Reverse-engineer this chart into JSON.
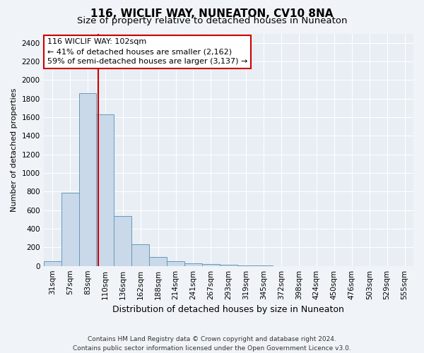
{
  "title": "116, WICLIF WAY, NUNEATON, CV10 8NA",
  "subtitle": "Size of property relative to detached houses in Nuneaton",
  "xlabel": "Distribution of detached houses by size in Nuneaton",
  "ylabel": "Number of detached properties",
  "categories": [
    "31sqm",
    "57sqm",
    "83sqm",
    "110sqm",
    "136sqm",
    "162sqm",
    "188sqm",
    "214sqm",
    "241sqm",
    "267sqm",
    "293sqm",
    "319sqm",
    "345sqm",
    "372sqm",
    "398sqm",
    "424sqm",
    "450sqm",
    "476sqm",
    "503sqm",
    "529sqm",
    "555sqm"
  ],
  "values": [
    50,
    790,
    1860,
    1630,
    535,
    230,
    100,
    50,
    30,
    20,
    10,
    5,
    2,
    1,
    1,
    0,
    0,
    0,
    0,
    0,
    0
  ],
  "bar_color": "#c9d9e9",
  "bar_edge_color": "#6699bb",
  "ylim": [
    0,
    2500
  ],
  "yticks": [
    0,
    200,
    400,
    600,
    800,
    1000,
    1200,
    1400,
    1600,
    1800,
    2000,
    2200,
    2400
  ],
  "annotation_box_text": "116 WICLIF WAY: 102sqm\n← 41% of detached houses are smaller (2,162)\n59% of semi-detached houses are larger (3,137) →",
  "vline_color": "#cc0000",
  "vline_position": 2.62,
  "footer_line1": "Contains HM Land Registry data © Crown copyright and database right 2024.",
  "footer_line2": "Contains public sector information licensed under the Open Government Licence v3.0.",
  "bg_color": "#f0f4f8",
  "plot_bg_color": "#e8eef4",
  "grid_color": "#ffffff",
  "title_fontsize": 11,
  "subtitle_fontsize": 9.5,
  "xlabel_fontsize": 9,
  "ylabel_fontsize": 8,
  "tick_fontsize": 7.5,
  "annot_fontsize": 8,
  "footer_fontsize": 6.5
}
